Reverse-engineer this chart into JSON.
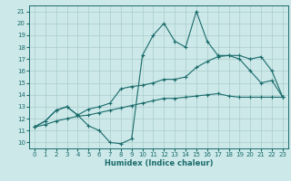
{
  "title": "",
  "xlabel": "Humidex (Indice chaleur)",
  "ylabel": "",
  "bg_color": "#cce8e8",
  "line_color": "#1a6b6b",
  "grid_color": "#aacccc",
  "xlim": [
    -0.5,
    23.5
  ],
  "ylim": [
    9.5,
    21.5
  ],
  "xticks": [
    0,
    1,
    2,
    3,
    4,
    5,
    6,
    7,
    8,
    9,
    10,
    11,
    12,
    13,
    14,
    15,
    16,
    17,
    18,
    19,
    20,
    21,
    22,
    23
  ],
  "yticks": [
    10,
    11,
    12,
    13,
    14,
    15,
    16,
    17,
    18,
    19,
    20,
    21
  ],
  "line1_x": [
    0,
    1,
    2,
    3,
    4,
    5,
    6,
    7,
    8,
    9,
    10,
    11,
    12,
    13,
    14,
    15,
    16,
    17,
    18,
    19,
    20,
    21,
    22,
    23
  ],
  "line1_y": [
    11.3,
    11.8,
    12.7,
    13.0,
    12.3,
    11.4,
    11.0,
    10.0,
    9.9,
    10.3,
    17.3,
    19.0,
    20.0,
    18.5,
    18.0,
    21.0,
    18.5,
    17.3,
    17.3,
    17.0,
    16.0,
    15.0,
    15.2,
    13.8
  ],
  "line2_x": [
    0,
    1,
    2,
    3,
    4,
    5,
    6,
    7,
    8,
    9,
    10,
    11,
    12,
    13,
    14,
    15,
    16,
    17,
    18,
    19,
    20,
    21,
    22,
    23
  ],
  "line2_y": [
    11.3,
    11.8,
    12.7,
    13.0,
    12.3,
    12.8,
    13.0,
    13.3,
    14.5,
    14.7,
    14.8,
    15.0,
    15.3,
    15.3,
    15.5,
    16.3,
    16.8,
    17.2,
    17.3,
    17.3,
    17.0,
    17.2,
    16.0,
    13.8
  ],
  "line3_x": [
    0,
    1,
    2,
    3,
    4,
    5,
    6,
    7,
    8,
    9,
    10,
    11,
    12,
    13,
    14,
    15,
    16,
    17,
    18,
    19,
    20,
    21,
    22,
    23
  ],
  "line3_y": [
    11.3,
    11.5,
    11.8,
    12.0,
    12.2,
    12.3,
    12.5,
    12.7,
    12.9,
    13.1,
    13.3,
    13.5,
    13.7,
    13.7,
    13.8,
    13.9,
    14.0,
    14.1,
    13.9,
    13.8,
    13.8,
    13.8,
    13.8,
    13.8
  ]
}
